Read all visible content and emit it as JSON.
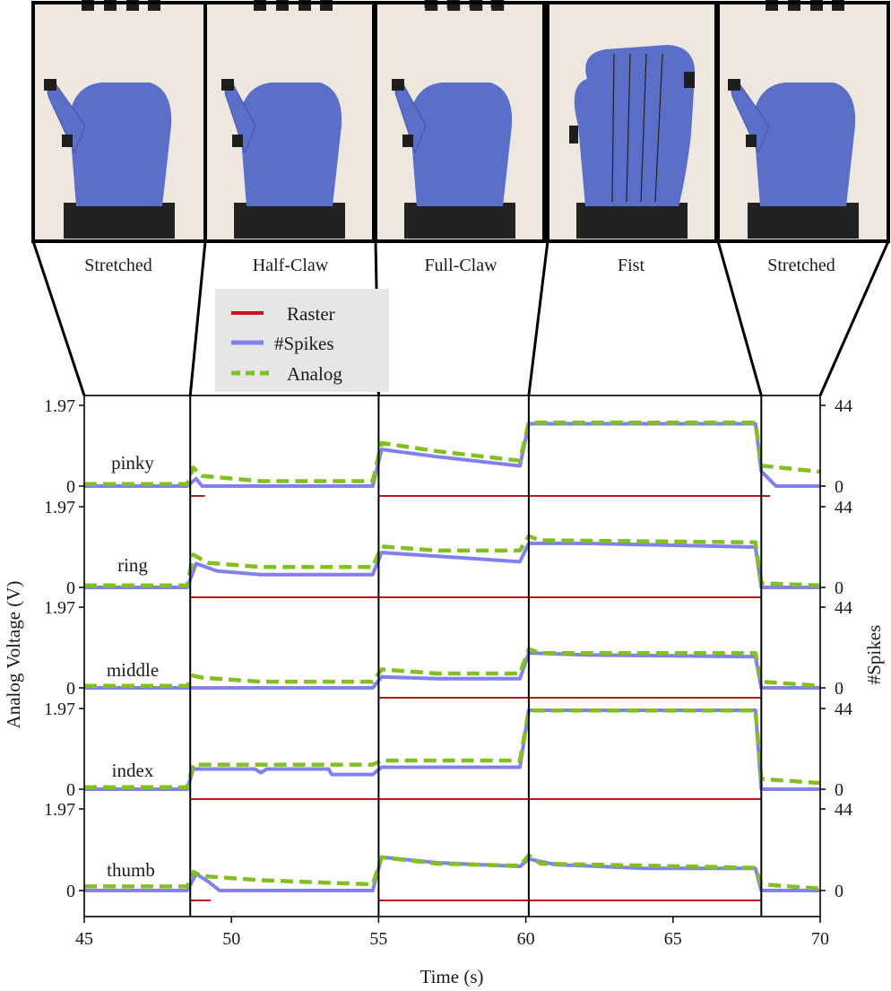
{
  "colors": {
    "raster": "#c0171c",
    "spikes": "#8080ee",
    "analog": "#82c022",
    "axis": "#000000",
    "photo_bg": "#ede7df",
    "glove": "#5b6fc9",
    "glove_shadow": "#3f4f9a",
    "cuff": "#222222",
    "sensor": "#1e1e1e"
  },
  "photos": {
    "captions": [
      "Stretched",
      "Half-Claw",
      "Full-Claw",
      "Fist",
      "Stretched"
    ],
    "poses": [
      "stretched",
      "half-claw",
      "full-claw",
      "fist",
      "stretched"
    ]
  },
  "legend": {
    "entries": [
      {
        "label": "Raster",
        "key": "raster",
        "style": "solid-thin"
      },
      {
        "label": "#Spikes",
        "key": "spikes",
        "style": "solid-thick"
      },
      {
        "label": "Analog",
        "key": "analog",
        "style": "dashed"
      }
    ]
  },
  "chart_data": {
    "type": "line",
    "xlabel": "Time (s)",
    "ylabel_left": "Analog Voltage (V)",
    "ylabel_right": "#Spikes",
    "xlim": [
      45,
      70
    ],
    "xticks": [
      45,
      50,
      55,
      60,
      65,
      70
    ],
    "y_left": {
      "max": 1.97,
      "min": 0,
      "tick_labels": [
        "1.97",
        "0"
      ]
    },
    "y_right": {
      "max": 44,
      "min": 0,
      "tick_labels": [
        "44",
        "0"
      ]
    },
    "phase_boundaries": [
      48.6,
      55.0,
      60.1,
      68.0
    ],
    "phases": [
      {
        "label": "Stretched",
        "start": 45,
        "end": 48.6
      },
      {
        "label": "Half-Claw",
        "start": 48.6,
        "end": 55.0
      },
      {
        "label": "Full-Claw",
        "start": 55.0,
        "end": 60.1
      },
      {
        "label": "Fist",
        "start": 60.1,
        "end": 68.0
      },
      {
        "label": "Stretched",
        "start": 68.0,
        "end": 70
      }
    ],
    "series_units": {
      "Analog": "V",
      "#Spikes": "count",
      "Raster": "spike events"
    },
    "fingers": [
      {
        "name": "pinky",
        "analog": [
          [
            45,
            0.05
          ],
          [
            48.5,
            0.05
          ],
          [
            48.7,
            0.45
          ],
          [
            49.0,
            0.25
          ],
          [
            51,
            0.12
          ],
          [
            54.8,
            0.12
          ],
          [
            55.1,
            1.05
          ],
          [
            57,
            0.85
          ],
          [
            59.8,
            0.62
          ],
          [
            60.1,
            1.55
          ],
          [
            60.3,
            1.55
          ],
          [
            67.8,
            1.55
          ],
          [
            68.0,
            0.5
          ],
          [
            70,
            0.35
          ]
        ],
        "spikes": [
          [
            45,
            0
          ],
          [
            48.5,
            0
          ],
          [
            48.8,
            4
          ],
          [
            49.0,
            0
          ],
          [
            54.8,
            0
          ],
          [
            55.1,
            20
          ],
          [
            57,
            16
          ],
          [
            59.8,
            11
          ],
          [
            60.1,
            34
          ],
          [
            67.8,
            34
          ],
          [
            68.0,
            8
          ],
          [
            68.5,
            0
          ],
          [
            70,
            0
          ]
        ],
        "raster": [
          [
            48.6,
            49.1
          ],
          [
            55.0,
            68.3
          ]
        ]
      },
      {
        "name": "ring",
        "analog": [
          [
            45,
            0.05
          ],
          [
            48.5,
            0.05
          ],
          [
            48.7,
            0.8
          ],
          [
            49.2,
            0.6
          ],
          [
            51,
            0.5
          ],
          [
            54.8,
            0.5
          ],
          [
            55.1,
            1.0
          ],
          [
            57,
            0.9
          ],
          [
            59.8,
            0.9
          ],
          [
            60.1,
            1.25
          ],
          [
            60.5,
            1.15
          ],
          [
            67.8,
            1.1
          ],
          [
            68.0,
            0.1
          ],
          [
            70,
            0.05
          ]
        ],
        "spikes": [
          [
            45,
            0
          ],
          [
            48.5,
            0
          ],
          [
            48.8,
            13
          ],
          [
            49.5,
            9
          ],
          [
            51,
            7
          ],
          [
            54.8,
            7
          ],
          [
            55.1,
            19
          ],
          [
            57,
            17
          ],
          [
            59.8,
            14
          ],
          [
            60.1,
            24
          ],
          [
            62,
            24
          ],
          [
            67.8,
            22
          ],
          [
            68.0,
            0
          ],
          [
            70,
            0
          ]
        ],
        "raster": [
          [
            48.6,
            68.0
          ]
        ]
      },
      {
        "name": "middle",
        "analog": [
          [
            45,
            0.05
          ],
          [
            48.5,
            0.05
          ],
          [
            48.7,
            0.3
          ],
          [
            49.0,
            0.25
          ],
          [
            51,
            0.15
          ],
          [
            54.8,
            0.15
          ],
          [
            55.1,
            0.45
          ],
          [
            57,
            0.35
          ],
          [
            59.8,
            0.35
          ],
          [
            60.1,
            0.95
          ],
          [
            60.5,
            0.85
          ],
          [
            67.8,
            0.85
          ],
          [
            68.0,
            0.15
          ],
          [
            70,
            0.05
          ]
        ],
        "spikes": [
          [
            45,
            0
          ],
          [
            54.8,
            0
          ],
          [
            55.1,
            6
          ],
          [
            57,
            5
          ],
          [
            59.8,
            5
          ],
          [
            60.1,
            19
          ],
          [
            62,
            18
          ],
          [
            67.8,
            17
          ],
          [
            68.0,
            0
          ],
          [
            70,
            0
          ]
        ],
        "raster": [
          [
            55.0,
            68.0
          ]
        ]
      },
      {
        "name": "index",
        "analog": [
          [
            45,
            0.05
          ],
          [
            48.5,
            0.05
          ],
          [
            48.7,
            0.6
          ],
          [
            54.8,
            0.6
          ],
          [
            55.1,
            0.7
          ],
          [
            59.8,
            0.7
          ],
          [
            60.1,
            1.92
          ],
          [
            67.8,
            1.92
          ],
          [
            68.0,
            0.25
          ],
          [
            70,
            0.15
          ]
        ],
        "spikes": [
          [
            45,
            0
          ],
          [
            48.5,
            0
          ],
          [
            48.7,
            11
          ],
          [
            50.8,
            11
          ],
          [
            51.0,
            9
          ],
          [
            51.2,
            11
          ],
          [
            53.3,
            11
          ],
          [
            53.4,
            8
          ],
          [
            54.8,
            8
          ],
          [
            55.1,
            12
          ],
          [
            59.8,
            12
          ],
          [
            60.1,
            43
          ],
          [
            67.8,
            43
          ],
          [
            68.0,
            0
          ],
          [
            70,
            0
          ]
        ],
        "raster": [
          [
            48.6,
            68.0
          ]
        ]
      },
      {
        "name": "thumb",
        "analog": [
          [
            45,
            0.1
          ],
          [
            48.5,
            0.1
          ],
          [
            48.7,
            0.45
          ],
          [
            49.0,
            0.35
          ],
          [
            51,
            0.25
          ],
          [
            54.8,
            0.15
          ],
          [
            55.1,
            0.8
          ],
          [
            57,
            0.65
          ],
          [
            59.8,
            0.6
          ],
          [
            60.1,
            0.85
          ],
          [
            60.5,
            0.65
          ],
          [
            67.8,
            0.55
          ],
          [
            68.0,
            0.15
          ],
          [
            70,
            0.05
          ]
        ],
        "spikes": [
          [
            45,
            0
          ],
          [
            48.5,
            0
          ],
          [
            48.8,
            9
          ],
          [
            49.2,
            5
          ],
          [
            49.6,
            0
          ],
          [
            54.8,
            0
          ],
          [
            55.1,
            18
          ],
          [
            57,
            15
          ],
          [
            59.8,
            13
          ],
          [
            60.1,
            17
          ],
          [
            61,
            14
          ],
          [
            64,
            12
          ],
          [
            67.8,
            12
          ],
          [
            68.0,
            0
          ],
          [
            70,
            0
          ]
        ],
        "raster": [
          [
            48.6,
            49.3
          ],
          [
            55.0,
            68.0
          ]
        ]
      }
    ]
  }
}
